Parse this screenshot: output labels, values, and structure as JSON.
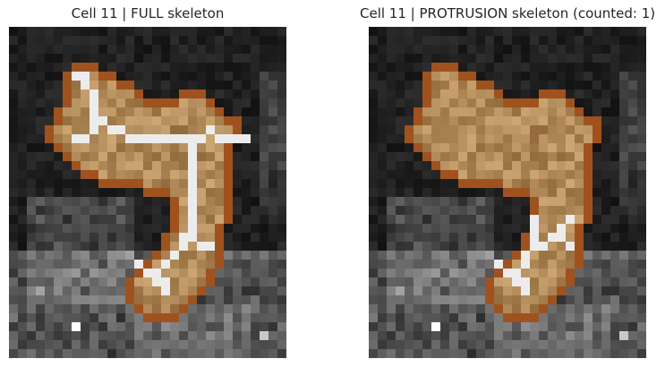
{
  "panels": [
    {
      "title": "Cell 11 | FULL skeleton",
      "skeleton": "full"
    },
    {
      "title": "Cell 11 | PROTRUSION skeleton (counted: 1)",
      "skeleton": "protrusion"
    }
  ],
  "colors": {
    "background": "#ffffff",
    "title_text": "#262626",
    "cell_fill": "#c8a06c",
    "cell_outline": "#a0521e",
    "skeleton": "#ececec"
  }
}
